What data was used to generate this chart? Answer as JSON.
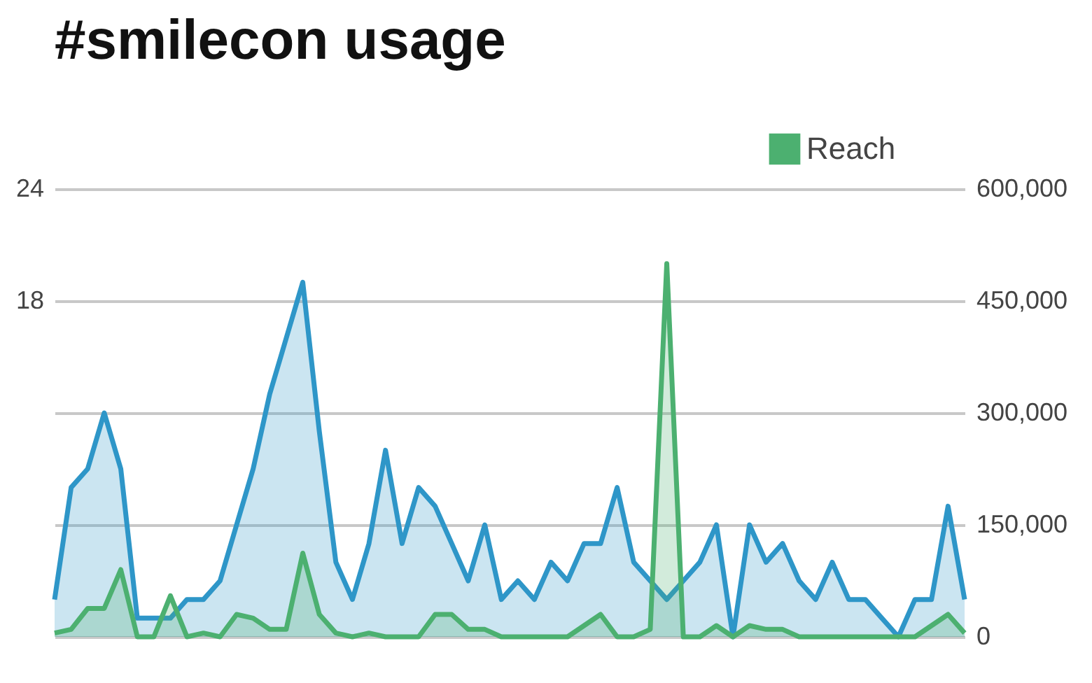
{
  "chart_data": {
    "type": "area",
    "title": "#smilecon usage",
    "categories": [
      null,
      null,
      null,
      null,
      null,
      null,
      null,
      null,
      null,
      null,
      null,
      null,
      null,
      null,
      null,
      null,
      null,
      null,
      null,
      null,
      null,
      null,
      null,
      null,
      null,
      null,
      null,
      null,
      null,
      null,
      null,
      null,
      null,
      null,
      null,
      null,
      null,
      null,
      null,
      null,
      null,
      null,
      null,
      null,
      null,
      null,
      null,
      null,
      null,
      null,
      null,
      null,
      null,
      null,
      null,
      null
    ],
    "series": [
      {
        "color": "#2e96c8",
        "values": [
          2,
          8,
          9,
          12,
          9,
          1,
          1,
          1,
          2,
          2,
          3,
          6,
          9,
          13,
          16,
          19,
          11,
          4,
          2,
          5,
          10,
          5,
          8,
          7,
          5,
          3,
          6,
          2,
          3,
          2,
          4,
          3,
          5,
          5,
          8,
          4,
          3,
          2,
          3,
          4,
          6,
          0,
          6,
          4,
          5,
          3,
          2,
          4,
          2,
          2,
          1,
          0,
          2,
          2,
          7,
          2
        ]
      },
      {
        "name": "Reach",
        "color": "#4cb070",
        "axis": "y2",
        "values": [
          5000,
          10000,
          38000,
          38000,
          90000,
          0,
          0,
          55000,
          0,
          5000,
          0,
          30000,
          25000,
          10000,
          10000,
          112000,
          30000,
          5000,
          0,
          5000,
          0,
          0,
          0,
          30000,
          30000,
          10000,
          10000,
          0,
          0,
          0,
          0,
          0,
          15000,
          30000,
          0,
          0,
          10000,
          500000,
          0,
          0,
          15000,
          0,
          15000,
          10000,
          10000,
          0,
          0,
          0,
          0,
          0,
          0,
          0,
          0,
          15000,
          30000,
          5000
        ]
      }
    ],
    "ylim": [
      0,
      24
    ],
    "yticks": [
      {
        "value": 0,
        "label": null
      },
      {
        "value": 6,
        "label": null
      },
      {
        "value": 12,
        "label": null
      },
      18,
      24
    ],
    "y2lim": [
      0,
      600000
    ],
    "y2ticks": [
      0,
      {
        "value": 150000,
        "label": "150,000"
      },
      {
        "value": 300000,
        "label": "300,000"
      },
      {
        "value": 450000,
        "label": "450,000"
      },
      {
        "value": 600000,
        "label": "600,000"
      }
    ],
    "grid": "y",
    "legend": "top right"
  }
}
